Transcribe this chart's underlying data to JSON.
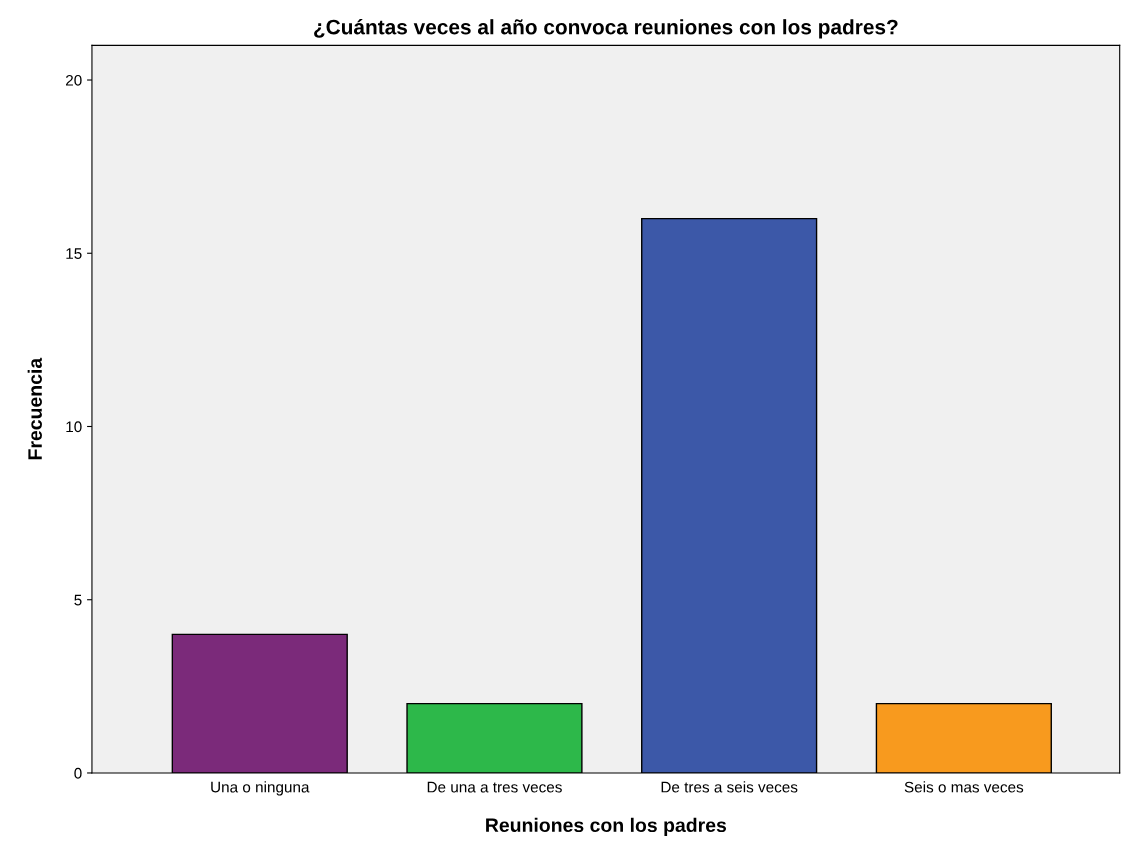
{
  "chart_data": {
    "type": "bar",
    "title": "¿Cuántas veces al año convoca reuniones con los padres?",
    "xlabel": "Reuniones con los padres",
    "ylabel": "Frecuencia",
    "categories": [
      "Una o ninguna",
      "De una a tres veces",
      "De tres a seis veces",
      "Seis o mas veces"
    ],
    "values": [
      4,
      2,
      16,
      2
    ],
    "colors": [
      "#7b2a7a",
      "#2db84a",
      "#3c58a8",
      "#f89a1e"
    ],
    "ylim": [
      0,
      21
    ],
    "yticks": [
      0,
      5,
      10,
      15,
      20
    ],
    "grid": false
  }
}
